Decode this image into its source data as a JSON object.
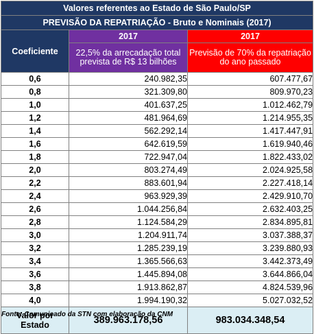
{
  "title": "Valores referentes ao Estado de São Paulo/SP",
  "subtitle": "PREVISÃO DA REPATRIAÇÃO - Bruto e Nominais (2017)",
  "coef_header": "Coeficiente",
  "col1": {
    "year": "2017",
    "desc": "22,5% da arrecadação total prevista de R$ 13 bilhões",
    "color": "#7030a0"
  },
  "col2": {
    "year": "2017",
    "desc": "Previsão de 70% da repatriação do ano passado",
    "color": "#ff0000"
  },
  "rows": [
    {
      "coef": "0,6",
      "v1": "240.982,35",
      "v2": "607.477,67"
    },
    {
      "coef": "0,8",
      "v1": "321.309,80",
      "v2": "809.970,23"
    },
    {
      "coef": "1,0",
      "v1": "401.637,25",
      "v2": "1.012.462,79"
    },
    {
      "coef": "1,2",
      "v1": "481.964,69",
      "v2": "1.214.955,35"
    },
    {
      "coef": "1,4",
      "v1": "562.292,14",
      "v2": "1.417.447,91"
    },
    {
      "coef": "1,6",
      "v1": "642.619,59",
      "v2": "1.619.940,46"
    },
    {
      "coef": "1,8",
      "v1": "722.947,04",
      "v2": "1.822.433,02"
    },
    {
      "coef": "2,0",
      "v1": "803.274,49",
      "v2": "2.024.925,58"
    },
    {
      "coef": "2,2",
      "v1": "883.601,94",
      "v2": "2.227.418,14"
    },
    {
      "coef": "2,4",
      "v1": "963.929,39",
      "v2": "2.429.910,70"
    },
    {
      "coef": "2,6",
      "v1": "1.044.256,84",
      "v2": "2.632.403,25"
    },
    {
      "coef": "2,8",
      "v1": "1.124.584,29",
      "v2": "2.834.895,81"
    },
    {
      "coef": "3,0",
      "v1": "1.204.911,74",
      "v2": "3.037.388,37"
    },
    {
      "coef": "3,2",
      "v1": "1.285.239,19",
      "v2": "3.239.880,93"
    },
    {
      "coef": "3,4",
      "v1": "1.365.566,63",
      "v2": "3.442.373,49"
    },
    {
      "coef": "3,6",
      "v1": "1.445.894,08",
      "v2": "3.644.866,04"
    },
    {
      "coef": "3,8",
      "v1": "1.913.862,87",
      "v2": "4.824.539,96"
    },
    {
      "coef": "4,0",
      "v1": "1.994.190,32",
      "v2": "5.027.032,52"
    }
  ],
  "total": {
    "label": "Valor por Estado",
    "v1": "389.963.178,56",
    "v2": "983.034.348,54"
  },
  "source": "Fonte: Comunicado da STN com elaboração da CNM"
}
